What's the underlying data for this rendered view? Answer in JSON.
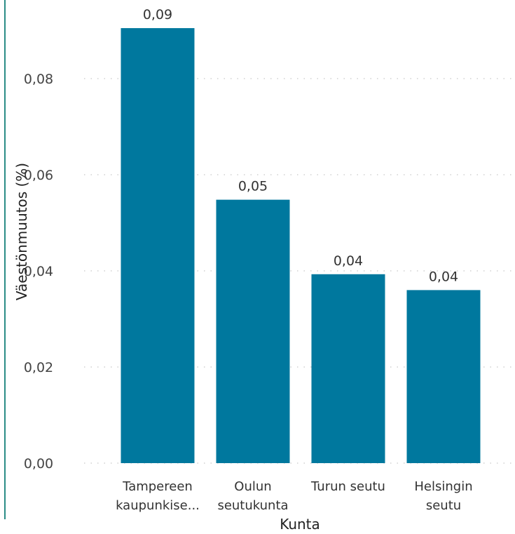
{
  "chart_data": {
    "type": "bar",
    "categories": [
      [
        "Tampereen",
        "kaupunkise..."
      ],
      [
        "Oulun",
        "seutukunta"
      ],
      [
        "Turun seutu"
      ],
      [
        "Helsingin",
        "seutu"
      ]
    ],
    "values": [
      0.0905,
      0.0548,
      0.0393,
      0.036
    ],
    "data_labels": [
      "0,09",
      "0,05",
      "0,04",
      "0,04"
    ],
    "xlabel": "Kunta",
    "ylabel": "Väestönmuutos (%)",
    "ylim": [
      0,
      0.09
    ],
    "yticks": [
      0,
      0.02,
      0.04,
      0.06,
      0.08
    ],
    "ytick_labels": [
      "0,00",
      "0,02",
      "0,04",
      "0,06",
      "0,08"
    ],
    "grid": true,
    "bar_color": "#00789e",
    "frame_color": "#2a8c86"
  }
}
